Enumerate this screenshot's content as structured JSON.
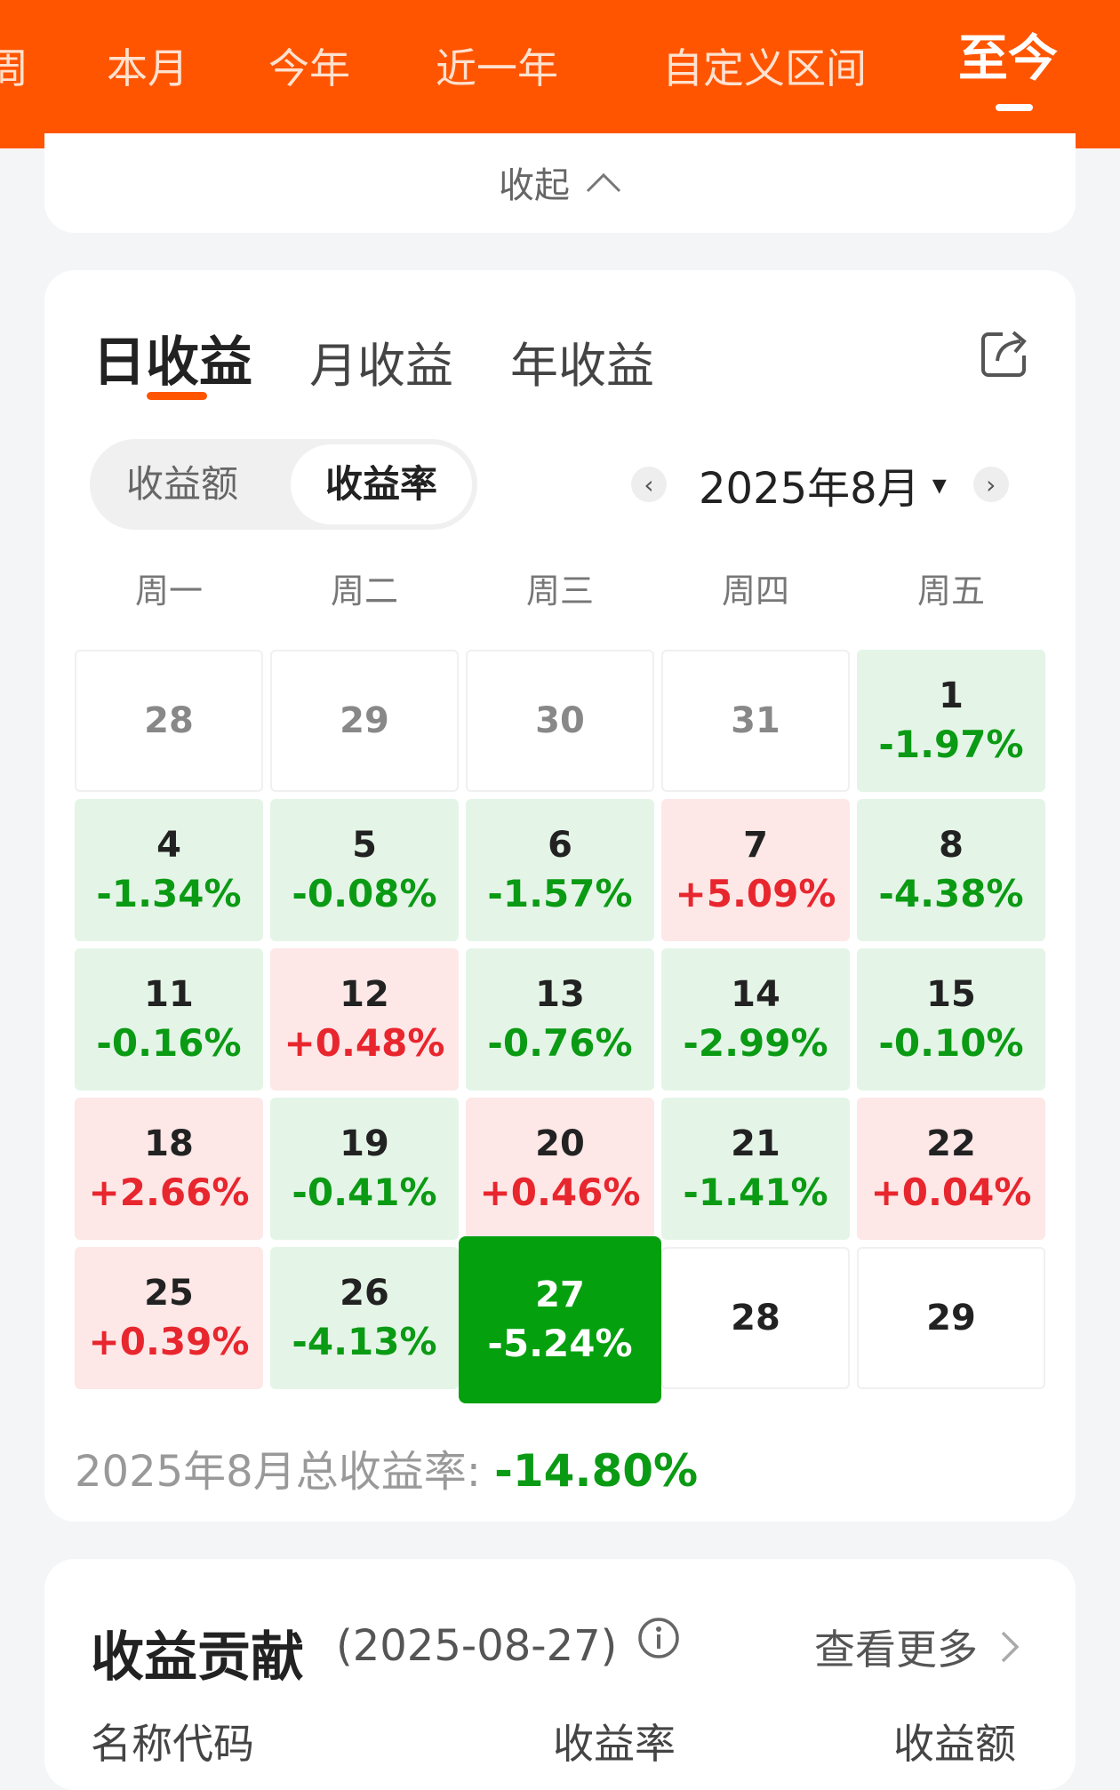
{
  "top_tabs": [
    "周",
    "本月",
    "今年",
    "近一年",
    "自定义区间",
    "至今"
  ],
  "active_top_tab": "至今",
  "collapse_label": "收起",
  "profit_tabs": [
    "日收益",
    "月收益",
    "年收益"
  ],
  "active_profit_tab": "日收益",
  "toggle": {
    "amount_label": "收益额",
    "rate_label": "收益率",
    "selected": "收益率"
  },
  "month": {
    "label": "2025年8月",
    "prev": "‹",
    "next": "›",
    "dropdown": "▾"
  },
  "weekdays": [
    "周一",
    "周二",
    "周三",
    "周四",
    "周五"
  ],
  "calendar": [
    {
      "day": "28",
      "value": "",
      "state": "empty-prev"
    },
    {
      "day": "29",
      "value": "",
      "state": "empty-prev"
    },
    {
      "day": "30",
      "value": "",
      "state": "empty-prev"
    },
    {
      "day": "31",
      "value": "",
      "state": "empty-prev"
    },
    {
      "day": "1",
      "value": "-1.97%",
      "state": "down"
    },
    {
      "day": "4",
      "value": "-1.34%",
      "state": "down"
    },
    {
      "day": "5",
      "value": "-0.08%",
      "state": "down"
    },
    {
      "day": "6",
      "value": "-1.57%",
      "state": "down"
    },
    {
      "day": "7",
      "value": "+5.09%",
      "state": "up"
    },
    {
      "day": "8",
      "value": "-4.38%",
      "state": "down"
    },
    {
      "day": "11",
      "value": "-0.16%",
      "state": "down"
    },
    {
      "day": "12",
      "value": "+0.48%",
      "state": "up"
    },
    {
      "day": "13",
      "value": "-0.76%",
      "state": "down"
    },
    {
      "day": "14",
      "value": "-2.99%",
      "state": "down"
    },
    {
      "day": "15",
      "value": "-0.10%",
      "state": "down"
    },
    {
      "day": "18",
      "value": "+2.66%",
      "state": "up"
    },
    {
      "day": "19",
      "value": "-0.41%",
      "state": "down"
    },
    {
      "day": "20",
      "value": "+0.46%",
      "state": "up"
    },
    {
      "day": "21",
      "value": "-1.41%",
      "state": "down"
    },
    {
      "day": "22",
      "value": "+0.04%",
      "state": "up"
    },
    {
      "day": "25",
      "value": "+0.39%",
      "state": "up"
    },
    {
      "day": "26",
      "value": "-4.13%",
      "state": "down"
    },
    {
      "day": "27",
      "value": "-5.24%",
      "state": "selected"
    },
    {
      "day": "28",
      "value": "",
      "state": "empty"
    },
    {
      "day": "29",
      "value": "",
      "state": "empty"
    }
  ],
  "total": {
    "label": "2025年8月总收益率: ",
    "value": "-14.80%"
  },
  "contribution": {
    "title": "收益贡献",
    "date": "(2025-08-27)",
    "see_more": "查看更多",
    "columns": [
      "名称代码",
      "收益率",
      "收益额"
    ]
  },
  "colors": {
    "brand": "#ff5500",
    "down": "#0b9a14",
    "up": "#e8262e",
    "selected_cell": "#05a00e"
  }
}
